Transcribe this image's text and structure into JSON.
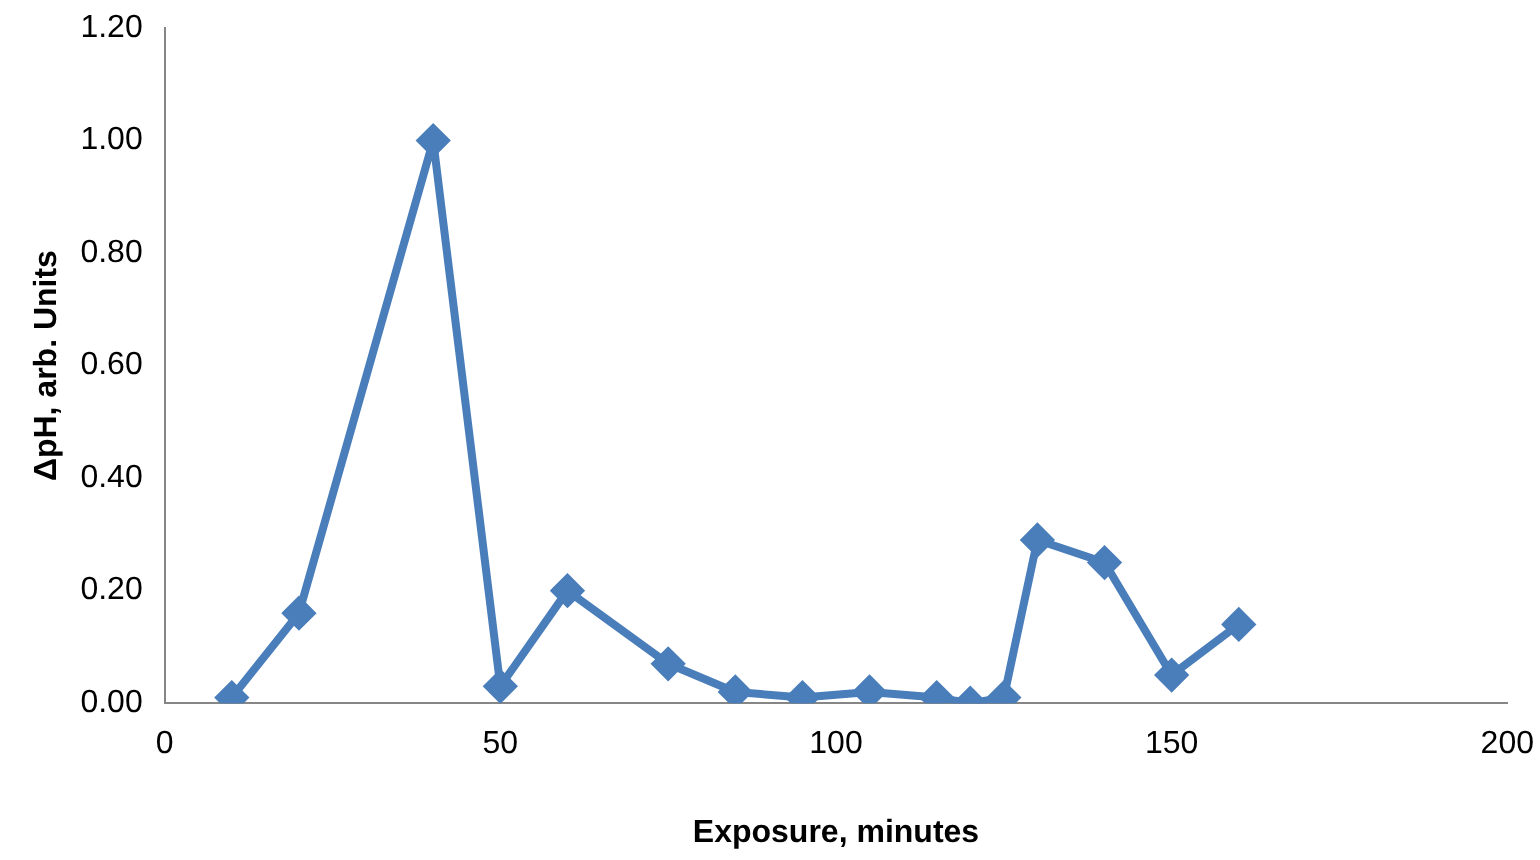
{
  "chart_data": {
    "type": "line",
    "xlabel": "Exposure, minutes",
    "ylabel": "ΔpH, arb. Units",
    "x": [
      10,
      20,
      40,
      50,
      60,
      75,
      85,
      95,
      105,
      115,
      120,
      125,
      130,
      140,
      150,
      160
    ],
    "series": [
      {
        "color": "#4a7ebb",
        "values": [
          0.01,
          0.16,
          1.0,
          0.03,
          0.2,
          0.07,
          0.02,
          0.01,
          0.02,
          0.01,
          0.0,
          0.01,
          0.29,
          0.25,
          0.05,
          0.14
        ]
      }
    ],
    "xlim": [
      0,
      200
    ],
    "xticks": [
      0,
      50,
      100,
      150,
      200
    ],
    "ylim": [
      0,
      1.2
    ],
    "yticks": [
      {
        "value": 0,
        "label": "0.00"
      },
      {
        "value": 0.2,
        "label": "0.20"
      },
      {
        "value": 0.4,
        "label": "0.40"
      },
      {
        "value": 0.6,
        "label": "0.60"
      },
      {
        "value": 0.8,
        "label": "0.80"
      },
      {
        "value": 1.0,
        "label": "1.00"
      },
      {
        "value": 1.2,
        "label": "1.20"
      }
    ],
    "grid": false,
    "legend": false,
    "marker": "diamond",
    "line_style": "solid"
  }
}
